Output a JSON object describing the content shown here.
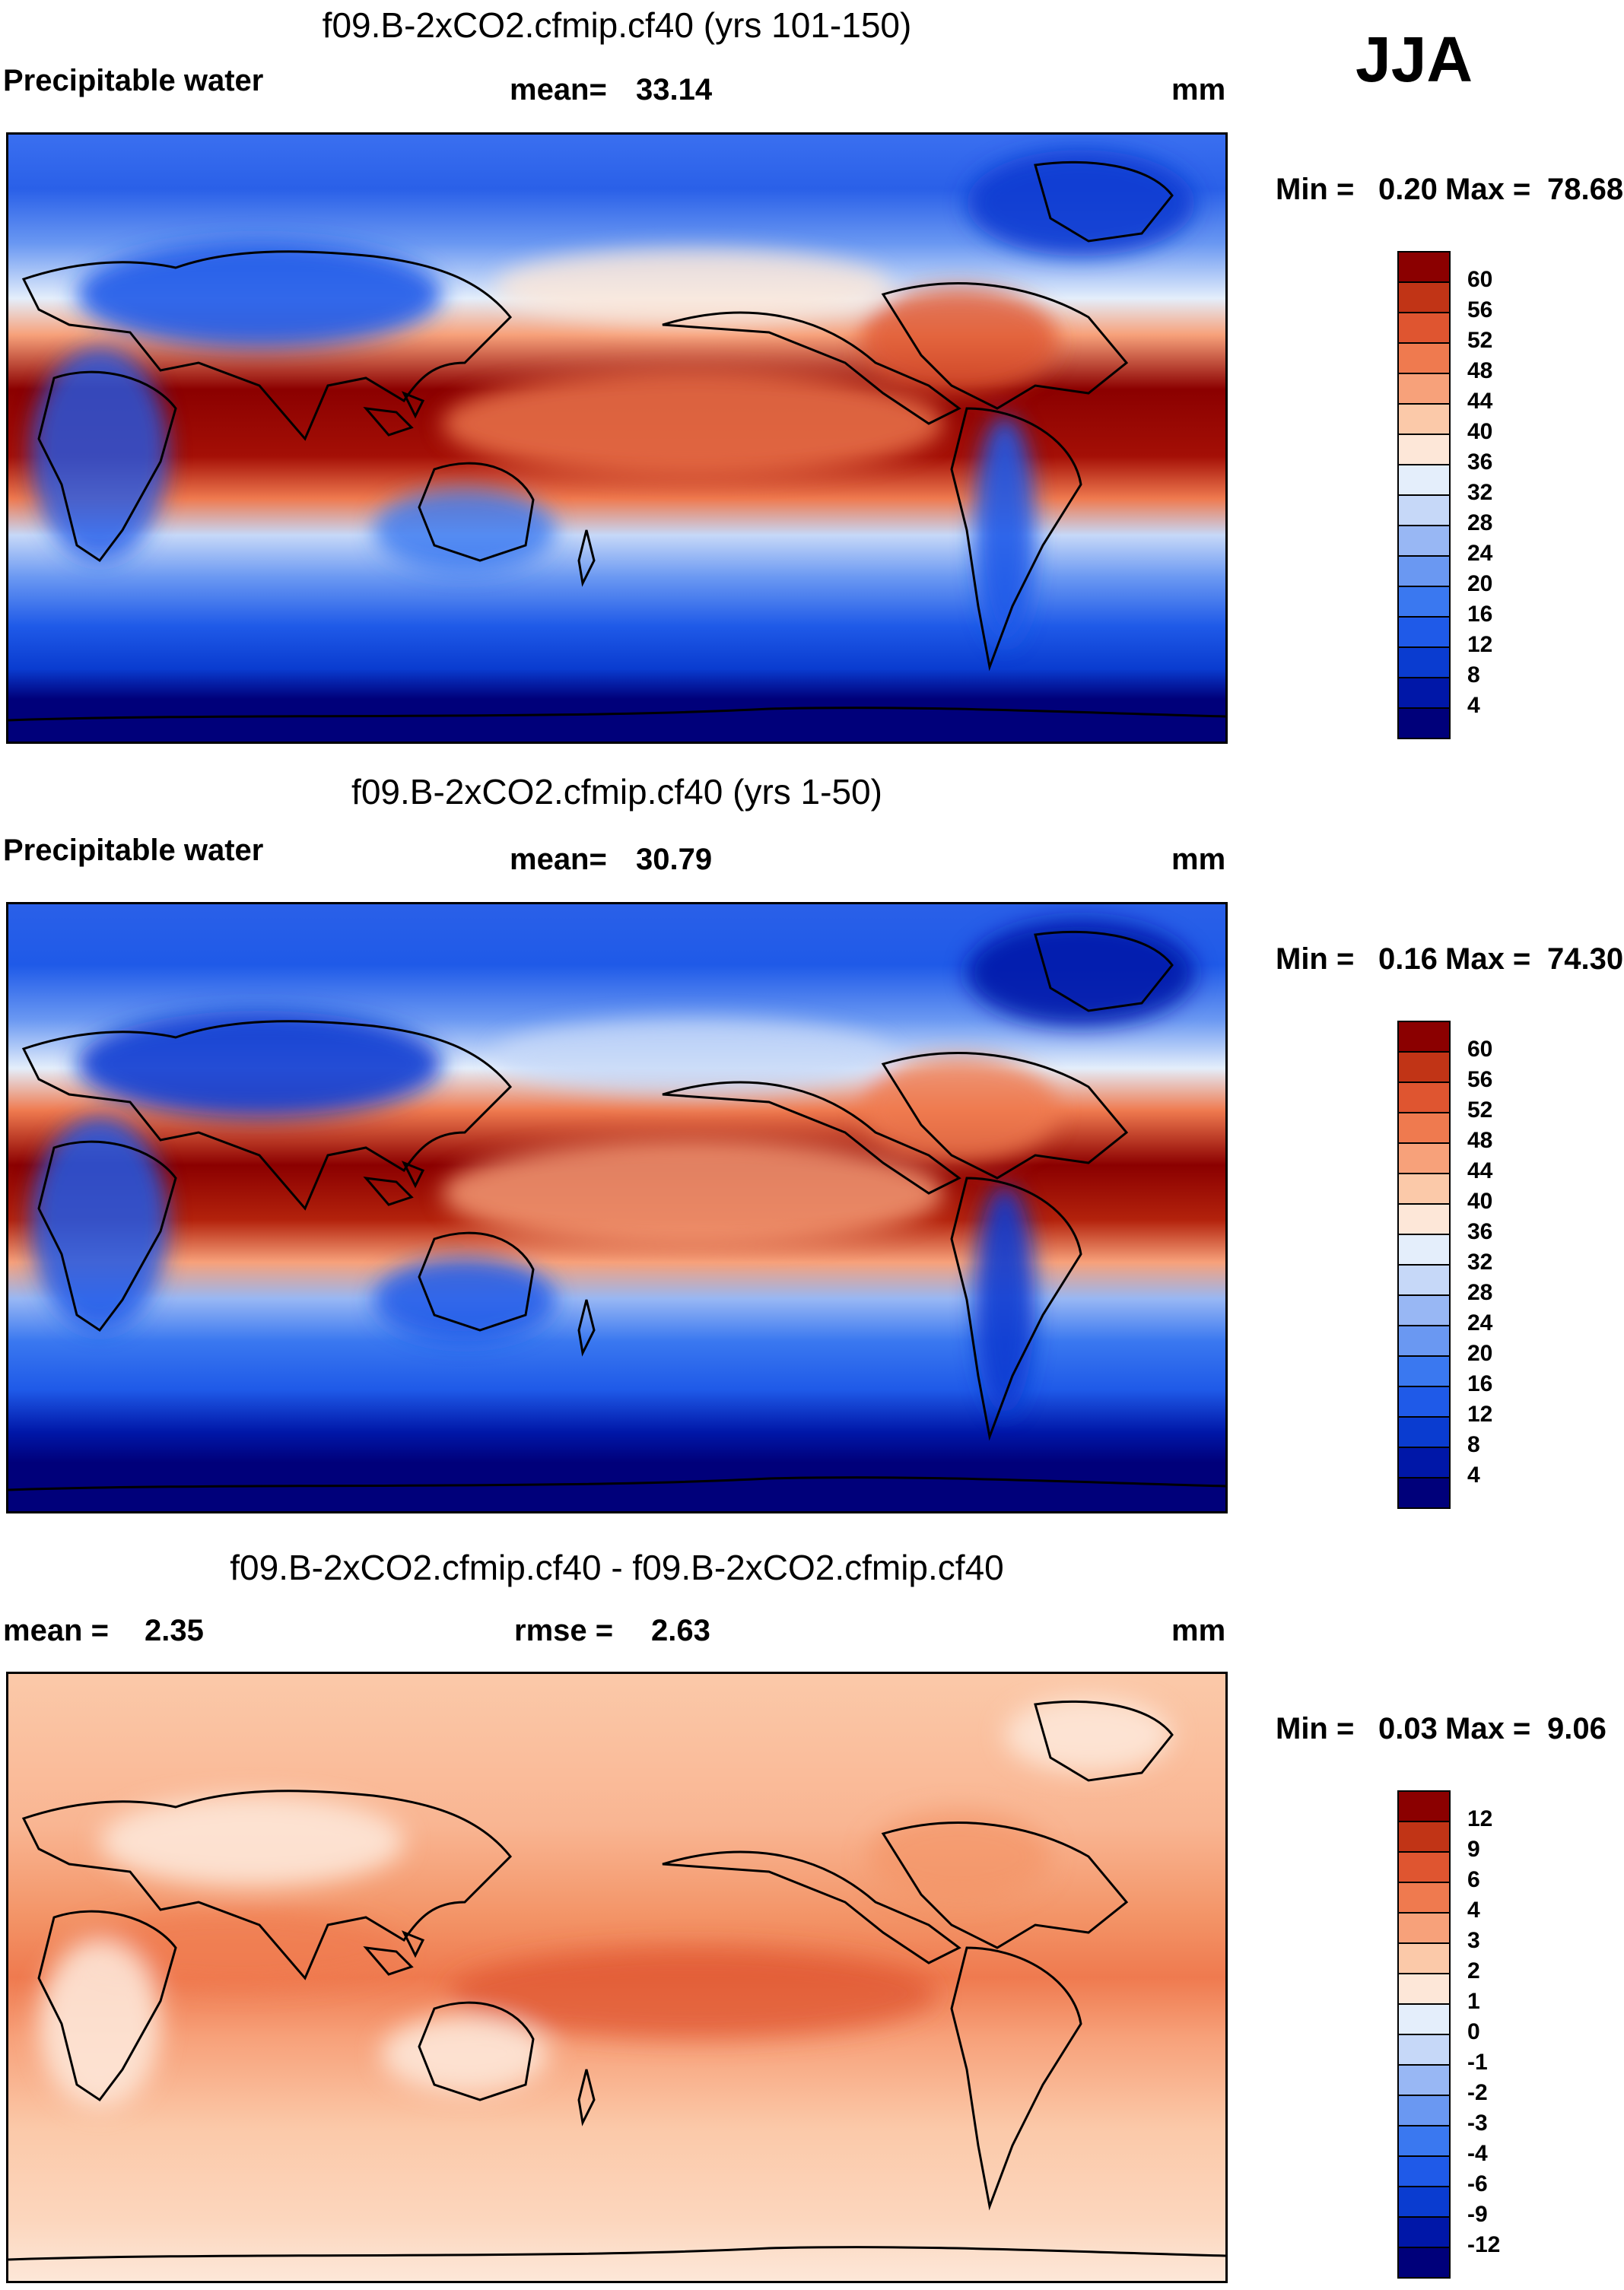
{
  "figure": {
    "season": "JJA",
    "units": "mm",
    "panels": [
      {
        "title": "f09.B-2xCO2.cfmip.cf40 (yrs 101-150)",
        "variable": "Precipitable water",
        "stats": [
          {
            "label": "mean=",
            "value": "33.14"
          }
        ],
        "min_max": {
          "min_label": "Min =",
          "min": "0.20",
          "max_label": "Max =",
          "max": "78.68"
        },
        "colorbar_ticks": [
          "60",
          "56",
          "52",
          "48",
          "44",
          "40",
          "36",
          "32",
          "28",
          "24",
          "20",
          "16",
          "12",
          "8",
          "4"
        ]
      },
      {
        "title": "f09.B-2xCO2.cfmip.cf40 (yrs 1-50)",
        "variable": "Precipitable water",
        "stats": [
          {
            "label": "mean=",
            "value": "30.79"
          }
        ],
        "min_max": {
          "min_label": "Min =",
          "min": "0.16",
          "max_label": "Max =",
          "max": "74.30"
        },
        "colorbar_ticks": [
          "60",
          "56",
          "52",
          "48",
          "44",
          "40",
          "36",
          "32",
          "28",
          "24",
          "20",
          "16",
          "12",
          "8",
          "4"
        ]
      },
      {
        "title": "f09.B-2xCO2.cfmip.cf40 - f09.B-2xCO2.cfmip.cf40",
        "variable": "",
        "stats": [
          {
            "label": "mean =",
            "value": "2.35"
          },
          {
            "label": "rmse =",
            "value": "2.63"
          }
        ],
        "min_max": {
          "min_label": "Min =",
          "min": "0.03",
          "max_label": "Max =",
          "max": "9.06"
        },
        "colorbar_ticks": [
          "12",
          "9",
          "6",
          "4",
          "3",
          "2",
          "1",
          "0",
          "-1",
          "-2",
          "-3",
          "-4",
          "-6",
          "-9",
          "-12"
        ]
      }
    ]
  },
  "chart_data": [
    {
      "type": "heatmap",
      "title": "f09.B-2xCO2.cfmip.cf40 (yrs 101-150)",
      "variable": "Precipitable water",
      "units": "mm",
      "season": "JJA",
      "mean": 33.14,
      "min": 0.2,
      "max": 78.68,
      "contour_levels": [
        4,
        8,
        12,
        16,
        20,
        24,
        28,
        32,
        36,
        40,
        44,
        48,
        52,
        56,
        60
      ],
      "colors": [
        "#00007a",
        "#0017a8",
        "#0a3cd0",
        "#1f5ae8",
        "#3a78f0",
        "#6a98f2",
        "#98b7f4",
        "#c6d8f8",
        "#e4eefb",
        "#fde7d8",
        "#fbc9a9",
        "#f7a17a",
        "#ef7a4f",
        "#df5530",
        "#c13416",
        "#8b0000"
      ]
    },
    {
      "type": "heatmap",
      "title": "f09.B-2xCO2.cfmip.cf40 (yrs 1-50)",
      "variable": "Precipitable water",
      "units": "mm",
      "season": "JJA",
      "mean": 30.79,
      "min": 0.16,
      "max": 74.3,
      "contour_levels": [
        4,
        8,
        12,
        16,
        20,
        24,
        28,
        32,
        36,
        40,
        44,
        48,
        52,
        56,
        60
      ],
      "colors": [
        "#00007a",
        "#0017a8",
        "#0a3cd0",
        "#1f5ae8",
        "#3a78f0",
        "#6a98f2",
        "#98b7f4",
        "#c6d8f8",
        "#e4eefb",
        "#fde7d8",
        "#fbc9a9",
        "#f7a17a",
        "#ef7a4f",
        "#df5530",
        "#c13416",
        "#8b0000"
      ]
    },
    {
      "type": "heatmap",
      "title": "f09.B-2xCO2.cfmip.cf40 - f09.B-2xCO2.cfmip.cf40",
      "units": "mm",
      "season": "JJA",
      "mean": 2.35,
      "rmse": 2.63,
      "min": 0.03,
      "max": 9.06,
      "contour_levels": [
        -12,
        -9,
        -6,
        -4,
        -3,
        -2,
        -1,
        0,
        1,
        2,
        3,
        4,
        6,
        9,
        12
      ],
      "colors": [
        "#00007a",
        "#0017a8",
        "#0a3cd0",
        "#1f5ae8",
        "#3a78f0",
        "#6a98f2",
        "#98b7f4",
        "#c6d8f8",
        "#e4eefb",
        "#fde7d8",
        "#fbc9a9",
        "#f7a17a",
        "#ef7a4f",
        "#df5530",
        "#c13416",
        "#8b0000"
      ]
    }
  ]
}
